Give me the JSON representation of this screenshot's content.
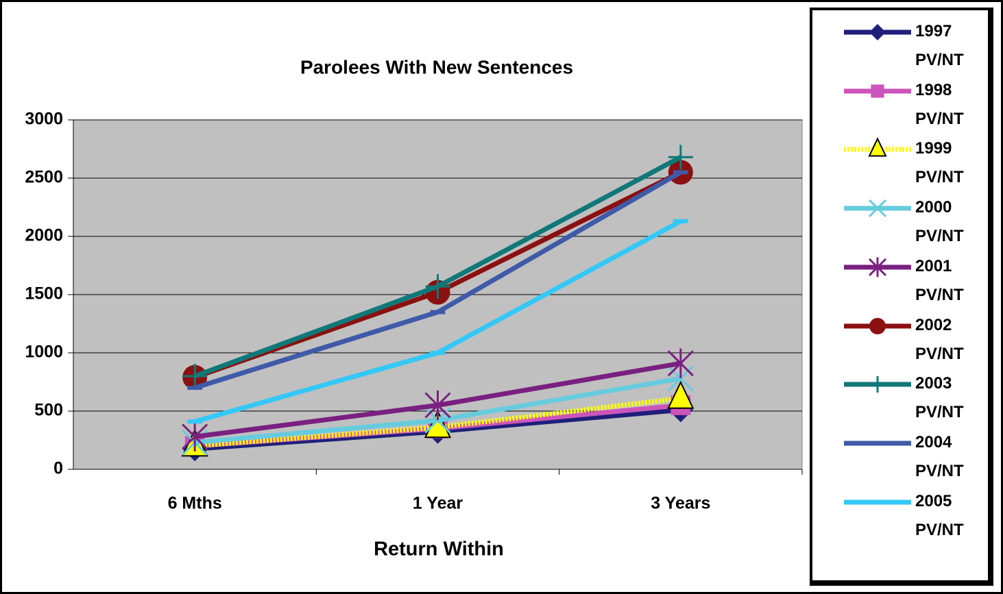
{
  "chart_data": {
    "type": "line",
    "title": "Parolees With New Sentences",
    "x_label": "Return Within",
    "categories": [
      "6 Mths",
      "1 Year",
      "3 Years"
    ],
    "ylim": [
      0,
      3000
    ],
    "yticks": [
      0,
      500,
      1000,
      1500,
      2000,
      2500,
      3000
    ],
    "grid": true,
    "legend": "right",
    "series": [
      {
        "name": "1997 PV/NT",
        "color": "#1f1f7a",
        "marker": "diamond",
        "values": [
          175,
          325,
          510
        ]
      },
      {
        "name": "1998 PV/NT",
        "color": "#cc55bb",
        "marker": "square",
        "values": [
          200,
          350,
          550
        ]
      },
      {
        "name": "1999 PV/NT",
        "color": "#ffff00",
        "marker": "triangle",
        "values": [
          200,
          360,
          610
        ]
      },
      {
        "name": "2000 PV/NT",
        "color": "#66ccdd",
        "marker": "x",
        "values": [
          230,
          420,
          780
        ]
      },
      {
        "name": "2001 PV/NT",
        "color": "#7a2080",
        "marker": "star",
        "values": [
          280,
          550,
          910
        ]
      },
      {
        "name": "2002 PV/NT",
        "color": "#8b1010",
        "marker": "circle",
        "values": [
          790,
          1520,
          2550
        ]
      },
      {
        "name": "2003 PV/NT",
        "color": "#107878",
        "marker": "plus",
        "values": [
          800,
          1570,
          2680
        ]
      },
      {
        "name": "2004 PV/NT",
        "color": "#3f5aa8",
        "marker": "dash",
        "values": [
          700,
          1350,
          2550
        ]
      },
      {
        "name": "2005 PV/NT",
        "color": "#33c8f8",
        "marker": "dash",
        "values": [
          410,
          1000,
          2130
        ]
      }
    ]
  }
}
